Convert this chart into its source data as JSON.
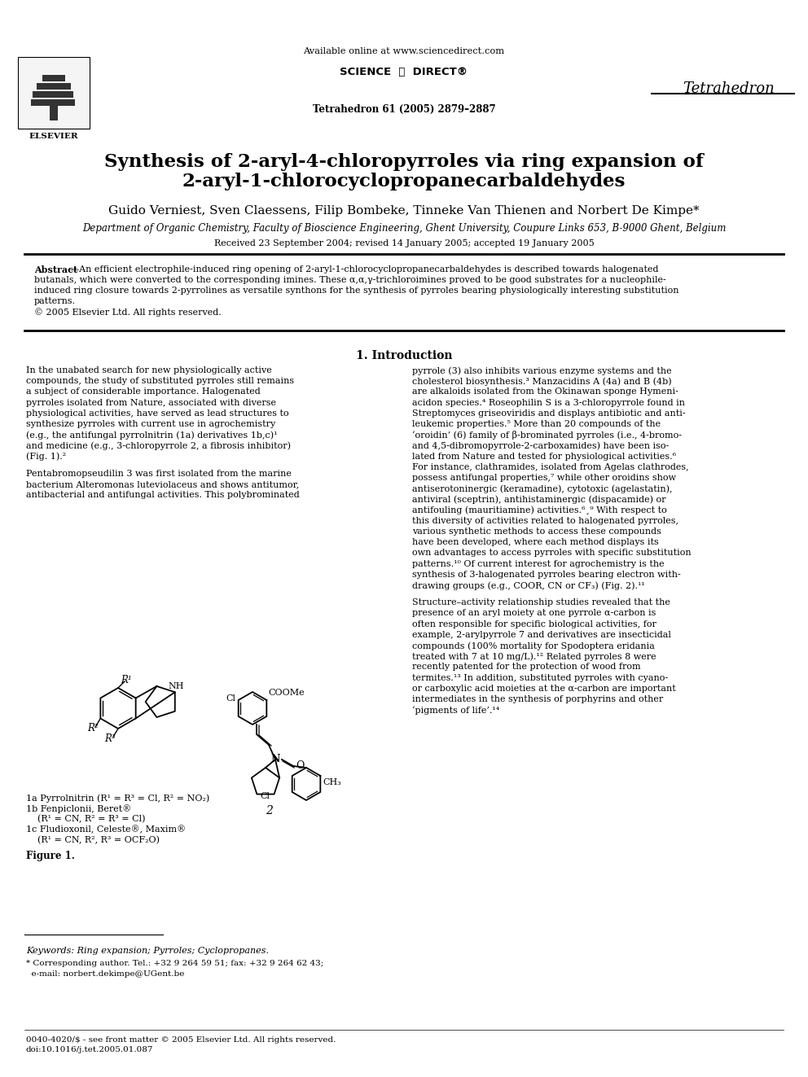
{
  "title_line1": "Synthesis of 2-aryl-4-chloropyrroles via ring expansion of",
  "title_line2": "2-aryl-1-chlorocyclopropanecarbaldehydes",
  "authors": "Guido Verniest, Sven Claessens, Filip Bombeke, Tinneke Van Thienen and Norbert De Kimpe*",
  "affiliation": "Department of Organic Chemistry, Faculty of Bioscience Engineering, Ghent University, Coupure Links 653, B-9000 Ghent, Belgium",
  "received": "Received 23 September 2004; revised 14 January 2005; accepted 19 January 2005",
  "header_url": "Available online at www.sciencedirect.com",
  "journal_ref": "Tetrahedron 61 (2005) 2879–2887",
  "journal_name": "Tetrahedron",
  "elsevier": "ELSEVIER",
  "abstract_bold": "Abstract",
  "abstract_body": "—An efficient electrophile-induced ring opening of 2-aryl-1-chlorocyclopropanecarbaldehydes is described towards halogenated butanals, which were converted to the corresponding imines. These α,α,γ-trichloroimines proved to be good substrates for a nucleophile-induced ring closure towards 2-pyrrolines as versatile synthons for the synthesis of pyrroles bearing physiologically interesting substitution patterns.",
  "copyright": "© 2005 Elsevier Ltd. All rights reserved.",
  "section1_title": "1. Introduction",
  "col1_lines": [
    "In the unabated search for new physiologically active",
    "compounds, the study of substituted pyrroles still remains",
    "a subject of considerable importance. Halogenated",
    "pyrroles isolated from Nature, associated with diverse",
    "physiological activities, have served as lead structures to",
    "synthesize pyrroles with current use in agrochemistry",
    "(e.g., the antifungal pyrrolnitrin (1a) derivatives 1b,c)¹",
    "and medicine (e.g., 3-chloropyrrole 2, a fibrosis inhibitor)",
    "(Fig. 1).²",
    "",
    "Pentabromopseudilin 3 was first isolated from the marine",
    "bacterium Alteromonas luteviolaceus and shows antitumor,",
    "antibacterial and antifungal activities. This polybrominated"
  ],
  "col2_lines": [
    "pyrrole (3) also inhibits various enzyme systems and the",
    "cholesterol biosynthesis.³ Manzacidins A (4a) and B (4b)",
    "are alkaloids isolated from the Okinawan sponge Hymeni-",
    "acidon species.⁴ Roseophilin S is a 3-chloropyrrole found in",
    "Streptomyces griseoviridis and displays antibiotic and anti-",
    "leukemic properties.⁵ More than 20 compounds of the",
    "‘oroidin’ (6) family of β-brominated pyrroles (i.e., 4-bromo-",
    "and 4,5-dibromopyrrole-2-carboxamides) have been iso-",
    "lated from Nature and tested for physiological activities.⁶",
    "For instance, clathramides, isolated from Agelas clathrodes,",
    "possess antifungal properties,⁷ while other oroidins show",
    "antiserotoninergic (keramadine), cytotoxic (agelastatin),",
    "antiviral (sceptrin), antihistaminergic (dispacamide) or",
    "antifouling (mauritiamine) activities.⁶¸⁹ With respect to",
    "this diversity of activities related to halogenated pyrroles,",
    "various synthetic methods to access these compounds",
    "have been developed, where each method displays its",
    "own advantages to access pyrroles with specific substitution",
    "patterns.¹⁰ Of current interest for agrochemistry is the",
    "synthesis of 3-halogenated pyrroles bearing electron with-",
    "drawing groups (e.g., COOR, CN or CF₃) (Fig. 2).¹¹",
    "",
    "Structure–activity relationship studies revealed that the",
    "presence of an aryl moiety at one pyrrole α-carbon is",
    "often responsible for specific biological activities, for",
    "example, 2-arylpyrrole 7 and derivatives are insecticidal",
    "compounds (100% mortality for Spodoptera eridania",
    "treated with 7 at 10 mg/L).¹² Related pyrroles 8 were",
    "recently patented for the protection of wood from",
    "termites.¹³ In addition, substituted pyrroles with cyano-",
    "or carboxylic acid moieties at the α-carbon are important",
    "intermediates in the synthesis of porphyrins and other",
    "‘pigments of life’.¹⁴"
  ],
  "fig1_captions": [
    "1a Pyrrolnitrin (R¹ = R³ = Cl, R² = NO₂)",
    "1b Fenpiclonii, Beret®",
    "    (R¹ = CN, R² = R³ = Cl)",
    "1c Fludioxonil, Celeste®, Maxim®",
    "    (R¹ = CN, R², R³ = OCF₂O)"
  ],
  "figure1_label": "Figure 1.",
  "keywords_label": "Keywords:",
  "keywords": " Ring expansion; Pyrroles; Cyclopropanes.",
  "footnote_star": "* Corresponding author. Tel.: +32 9 264 59 51; fax: +32 9 264 62 43;",
  "footnote_email": "  e-mail: norbert.dekimpe@UGent.be",
  "footer_issn": "0040-4020/$ - see front matter © 2005 Elsevier Ltd. All rights reserved.",
  "footer_doi": "doi:10.1016/j.tet.2005.01.087",
  "bg_color": "#ffffff",
  "text_color": "#000000",
  "blue_link": "#0000cc"
}
